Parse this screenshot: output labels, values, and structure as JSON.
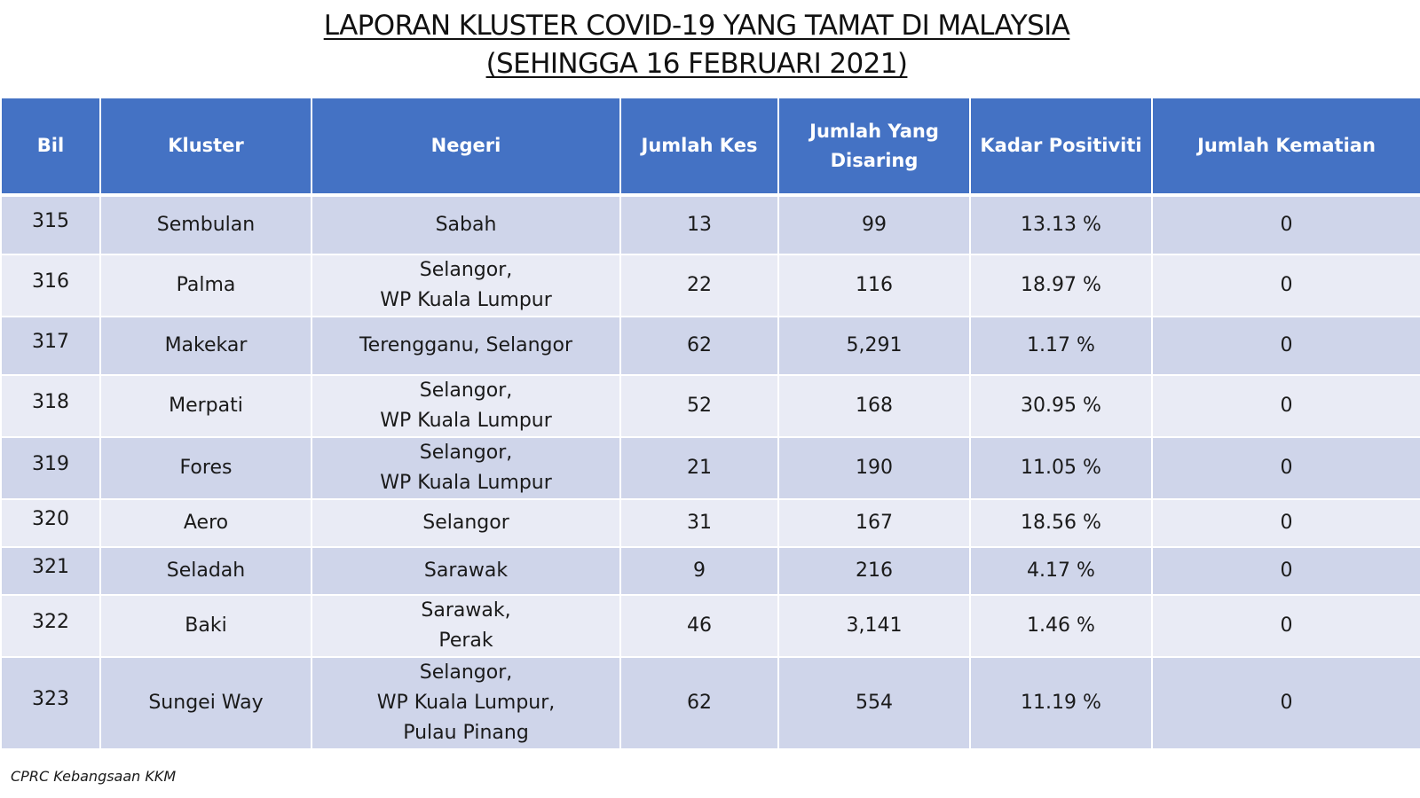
{
  "title": {
    "line1": "LAPORAN KLUSTER COVID-19 YANG TAMAT DI MALAYSIA",
    "line2": "(SEHINGGA 16 FEBRUARI 2021)"
  },
  "table": {
    "headers": [
      "Bil",
      "Kluster",
      "Negeri",
      "Jumlah Kes",
      "Jumlah Yang Disaring",
      "Kadar Positiviti",
      "Jumlah Kematian"
    ],
    "header_disaring_lines": [
      "Jumlah Yang",
      "Disaring"
    ],
    "header_color": "#4472c4",
    "row_colors": [
      "#cfd5ea",
      "#e9ebf5"
    ],
    "rows": [
      {
        "bil": "315",
        "kluster": "Sembulan",
        "negeri": [
          "Sabah"
        ],
        "kes": "13",
        "disaring": "99",
        "positiviti": "13.13 %",
        "kematian": "0"
      },
      {
        "bil": "316",
        "kluster": "Palma",
        "negeri": [
          "Selangor,",
          "WP Kuala Lumpur"
        ],
        "kes": "22",
        "disaring": "116",
        "positiviti": "18.97 %",
        "kematian": "0"
      },
      {
        "bil": "317",
        "kluster": "Makekar",
        "negeri": [
          "Terengganu, Selangor"
        ],
        "kes": "62",
        "disaring": "5,291",
        "positiviti": "1.17 %",
        "kematian": "0"
      },
      {
        "bil": "318",
        "kluster": "Merpati",
        "negeri": [
          "Selangor,",
          "WP Kuala Lumpur"
        ],
        "kes": "52",
        "disaring": "168",
        "positiviti": "30.95 %",
        "kematian": "0"
      },
      {
        "bil": "319",
        "kluster": "Fores",
        "negeri": [
          "Selangor,",
          "WP Kuala Lumpur"
        ],
        "kes": "21",
        "disaring": "190",
        "positiviti": "11.05 %",
        "kematian": "0"
      },
      {
        "bil": "320",
        "kluster": "Aero",
        "negeri": [
          "Selangor"
        ],
        "kes": "31",
        "disaring": "167",
        "positiviti": "18.56 %",
        "kematian": "0"
      },
      {
        "bil": "321",
        "kluster": "Seladah",
        "negeri": [
          "Sarawak"
        ],
        "kes": "9",
        "disaring": "216",
        "positiviti": "4.17 %",
        "kematian": "0"
      },
      {
        "bil": "322",
        "kluster": "Baki",
        "negeri": [
          "Sarawak,",
          "Perak"
        ],
        "kes": "46",
        "disaring": "3,141",
        "positiviti": "1.46 %",
        "kematian": "0"
      },
      {
        "bil": "323",
        "kluster": "Sungei Way",
        "negeri": [
          "Selangor,",
          "WP Kuala Lumpur,",
          "Pulau Pinang"
        ],
        "kes": "62",
        "disaring": "554",
        "positiviti": "11.19 %",
        "kematian": "0"
      }
    ]
  },
  "footer": {
    "source": "CPRC Kebangsaan KKM"
  }
}
